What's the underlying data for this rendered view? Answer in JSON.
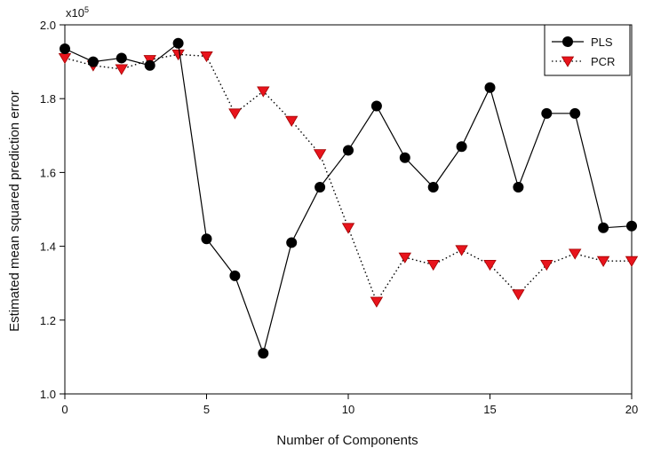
{
  "chart_data": {
    "type": "line",
    "xlabel": "Number of Components",
    "ylabel": "Estimated mean squared prediction error",
    "y_multiplier": {
      "base": "x10",
      "exponent": "5"
    },
    "xlim": [
      0,
      20
    ],
    "ylim": [
      1.0,
      2.0
    ],
    "x_ticks": [
      0,
      5,
      10,
      15,
      20
    ],
    "x_tick_labels": [
      "0",
      "5",
      "10",
      "15",
      "20"
    ],
    "y_ticks": [
      1.0,
      1.2,
      1.4,
      1.6,
      1.8,
      2.0
    ],
    "y_tick_labels": [
      "1.0",
      "1.2",
      "1.4",
      "1.6",
      "1.8",
      "2.0"
    ],
    "grid": false,
    "legend_position": "top-right",
    "series": [
      {
        "name": "PLS",
        "color": "#000000",
        "line_style": "solid",
        "marker": "circle",
        "x": [
          0,
          1,
          2,
          3,
          4,
          5,
          6,
          7,
          8,
          9,
          10,
          11,
          12,
          13,
          14,
          15,
          16,
          17,
          18,
          19,
          20
        ],
        "values": [
          1.935,
          1.9,
          1.91,
          1.89,
          1.95,
          1.42,
          1.32,
          1.11,
          1.41,
          1.56,
          1.66,
          1.78,
          1.64,
          1.56,
          1.67,
          1.83,
          1.56,
          1.76,
          1.76,
          1.45,
          1.455
        ]
      },
      {
        "name": "PCR",
        "color": "#e8141c",
        "line_style": "dotted",
        "marker": "triangle-down",
        "x": [
          0,
          1,
          2,
          3,
          4,
          5,
          6,
          7,
          8,
          9,
          10,
          11,
          12,
          13,
          14,
          15,
          16,
          17,
          18,
          19,
          20
        ],
        "values": [
          1.91,
          1.89,
          1.88,
          1.905,
          1.92,
          1.915,
          1.76,
          1.82,
          1.74,
          1.65,
          1.45,
          1.25,
          1.37,
          1.35,
          1.39,
          1.35,
          1.27,
          1.35,
          1.38,
          1.36,
          1.36
        ]
      }
    ]
  }
}
